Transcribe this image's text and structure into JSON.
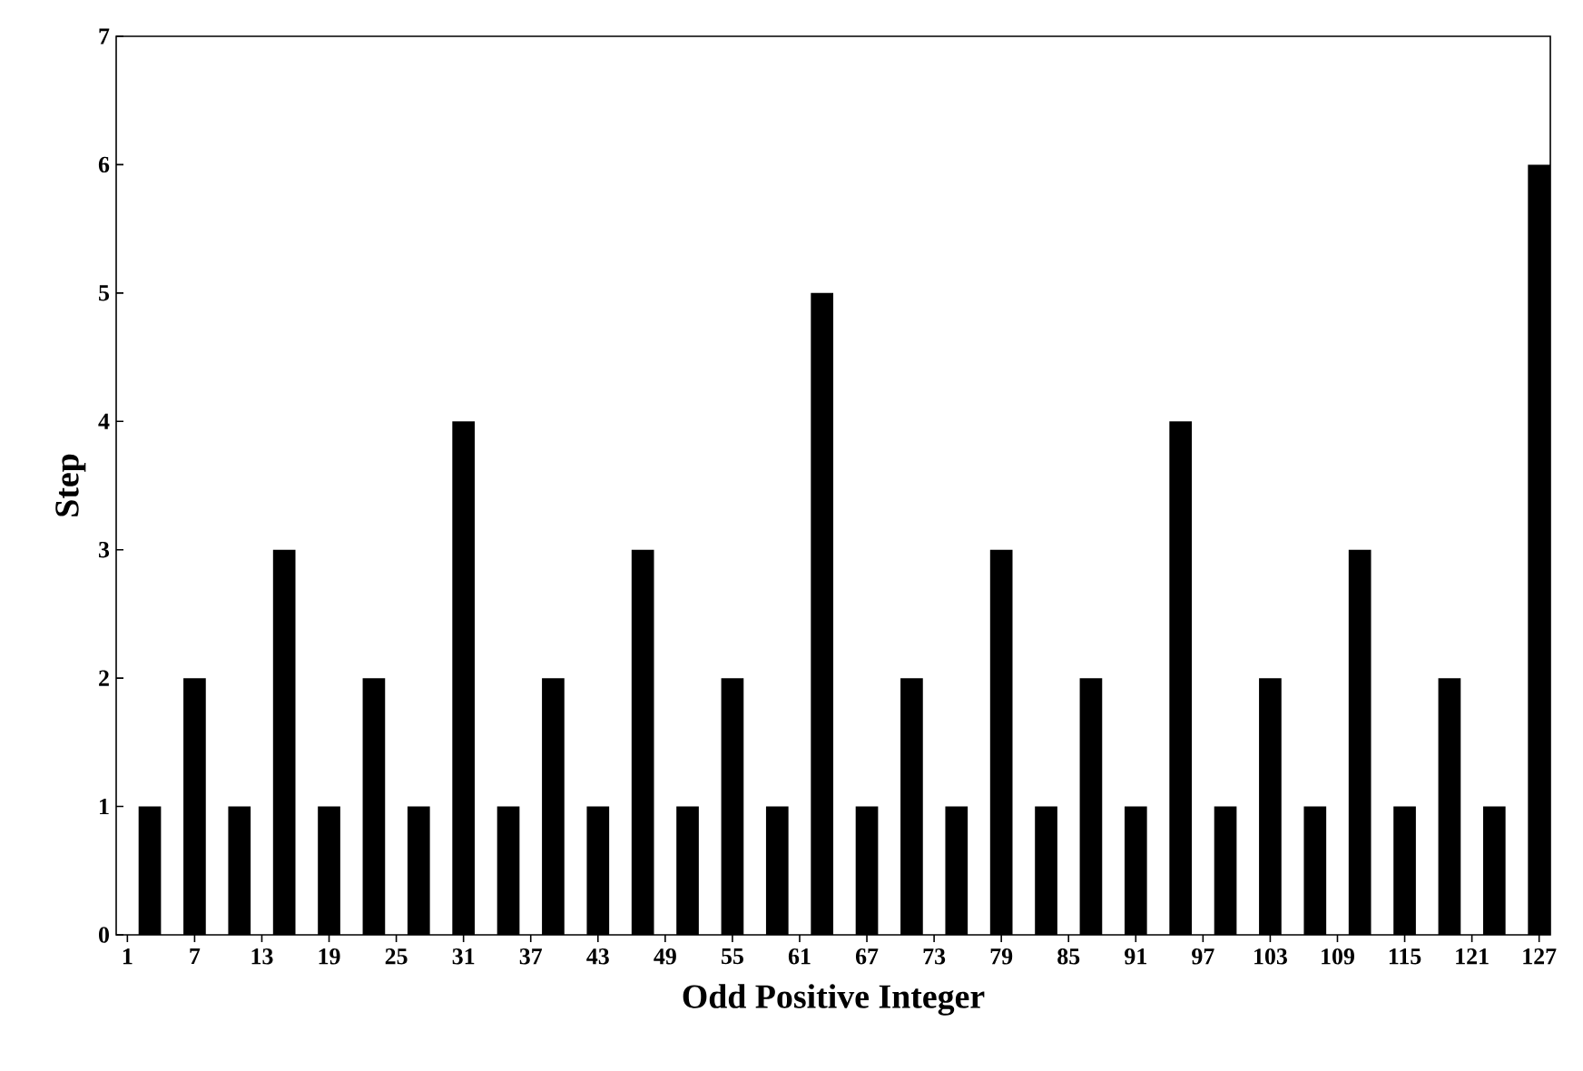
{
  "chart_data": {
    "type": "bar",
    "xlabel": "Odd Positive Integer",
    "ylabel": "Step",
    "categories": [
      "1",
      null,
      null,
      "7",
      null,
      null,
      "13",
      null,
      null,
      "19",
      null,
      null,
      "25",
      null,
      null,
      "31",
      null,
      null,
      "37",
      null,
      null,
      "43",
      null,
      null,
      "49",
      null,
      null,
      "55",
      null,
      null,
      "61",
      null,
      null,
      "67",
      null,
      null,
      "73",
      null,
      null,
      "79",
      null,
      null,
      "85",
      null,
      null,
      "91",
      null,
      null,
      "97",
      null,
      null,
      "103",
      null,
      null,
      "109",
      null,
      null,
      "115",
      null,
      null,
      "121",
      null,
      null,
      "127"
    ],
    "values": [
      0,
      1,
      0,
      2,
      0,
      1,
      0,
      3,
      0,
      1,
      0,
      2,
      0,
      1,
      0,
      4,
      0,
      1,
      0,
      2,
      0,
      1,
      0,
      3,
      0,
      1,
      0,
      2,
      0,
      1,
      0,
      5,
      0,
      1,
      0,
      2,
      0,
      1,
      0,
      3,
      0,
      1,
      0,
      2,
      0,
      1,
      0,
      4,
      0,
      1,
      0,
      2,
      0,
      1,
      0,
      3,
      0,
      1,
      0,
      2,
      0,
      1,
      0,
      6
    ],
    "color": "#000000",
    "ylim": [
      0,
      7
    ],
    "yticks": [
      0,
      1,
      2,
      3,
      4,
      5,
      6,
      7
    ],
    "grid": false
  }
}
